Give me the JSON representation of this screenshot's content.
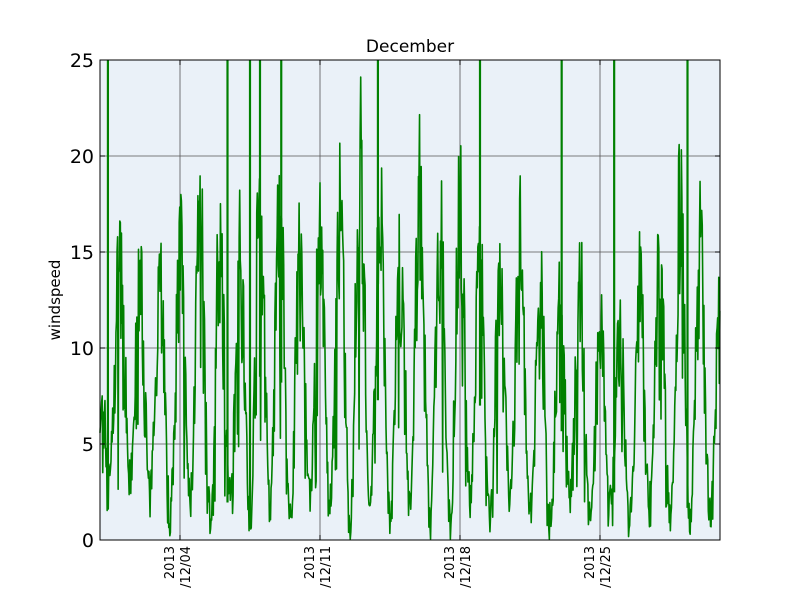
{
  "chart_data": {
    "type": "line",
    "title": "December",
    "xlabel": "",
    "ylabel": "windspeed",
    "xlim": [
      "2013-11-30",
      "2013-12-31"
    ],
    "ylim": [
      0,
      25
    ],
    "grid": true,
    "legend": "none",
    "plot_bg": "#eaf1f8",
    "line_color": "#008000",
    "yticks": [
      0,
      5,
      10,
      15,
      20,
      25
    ],
    "xticks": [
      {
        "date": "2013-12-04",
        "line1": "2013",
        "line2": "/12/04"
      },
      {
        "date": "2013-12-11",
        "line1": "2013",
        "line2": "/12/11"
      },
      {
        "date": "2013-12-18",
        "line1": "2013",
        "line2": "/12/18"
      },
      {
        "date": "2013-12-25",
        "line1": "2013",
        "line2": "/12/25"
      }
    ],
    "series": [
      {
        "x": [
          "2013-11-30",
          "2013-11-30T12:00",
          "2013-12-01",
          "2013-12-01T12:00",
          "2013-12-02",
          "2013-12-02T12:00",
          "2013-12-03",
          "2013-12-03T12:00",
          "2013-12-04",
          "2013-12-04T12:00",
          "2013-12-05",
          "2013-12-05T12:00",
          "2013-12-06",
          "2013-12-06T12:00",
          "2013-12-07",
          "2013-12-07T12:00",
          "2013-12-08",
          "2013-12-08T12:00",
          "2013-12-09",
          "2013-12-09T12:00",
          "2013-12-10",
          "2013-12-10T12:00",
          "2013-12-11",
          "2013-12-11T12:00",
          "2013-12-12",
          "2013-12-12T12:00",
          "2013-12-13",
          "2013-12-13T12:00",
          "2013-12-14",
          "2013-12-14T12:00",
          "2013-12-15",
          "2013-12-15T12:00",
          "2013-12-16",
          "2013-12-16T12:00",
          "2013-12-17",
          "2013-12-17T12:00",
          "2013-12-18",
          "2013-12-18T12:00",
          "2013-12-19",
          "2013-12-19T12:00",
          "2013-12-20",
          "2013-12-20T12:00",
          "2013-12-21",
          "2013-12-21T12:00",
          "2013-12-22",
          "2013-12-22T12:00",
          "2013-12-23",
          "2013-12-23T12:00",
          "2013-12-24",
          "2013-12-24T12:00",
          "2013-12-25",
          "2013-12-25T12:00",
          "2013-12-26",
          "2013-12-26T12:00",
          "2013-12-27",
          "2013-12-27T12:00",
          "2013-12-28",
          "2013-12-28T12:00",
          "2013-12-29",
          "2013-12-29T12:00",
          "2013-12-30",
          "2013-12-30T12:00",
          "2013-12-31"
        ],
        "y": [
          7,
          4,
          14,
          3,
          13,
          2,
          14,
          1,
          15,
          2,
          16,
          1,
          15,
          2,
          15,
          1,
          17,
          2,
          17,
          1,
          14,
          2,
          16,
          2,
          16,
          1,
          19,
          2,
          16,
          1,
          14,
          2,
          18,
          1,
          16,
          1,
          17,
          2,
          14,
          1,
          14,
          2,
          15,
          1,
          13,
          1,
          12,
          2,
          13,
          1,
          12,
          2,
          10,
          1,
          13,
          2,
          15,
          1,
          17,
          1,
          15,
          1,
          11
        ],
        "spikes": [
          "2013-11-30T09:30",
          "2013-12-06T09:00",
          "2013-12-07T12:00",
          "2013-12-08T00:00",
          "2013-12-09T01:30",
          "2013-12-13T21:30",
          "2013-12-19T00:00",
          "2013-12-23T02:00",
          "2013-12-25T17:00",
          "2013-12-29T09:00"
        ]
      }
    ]
  }
}
